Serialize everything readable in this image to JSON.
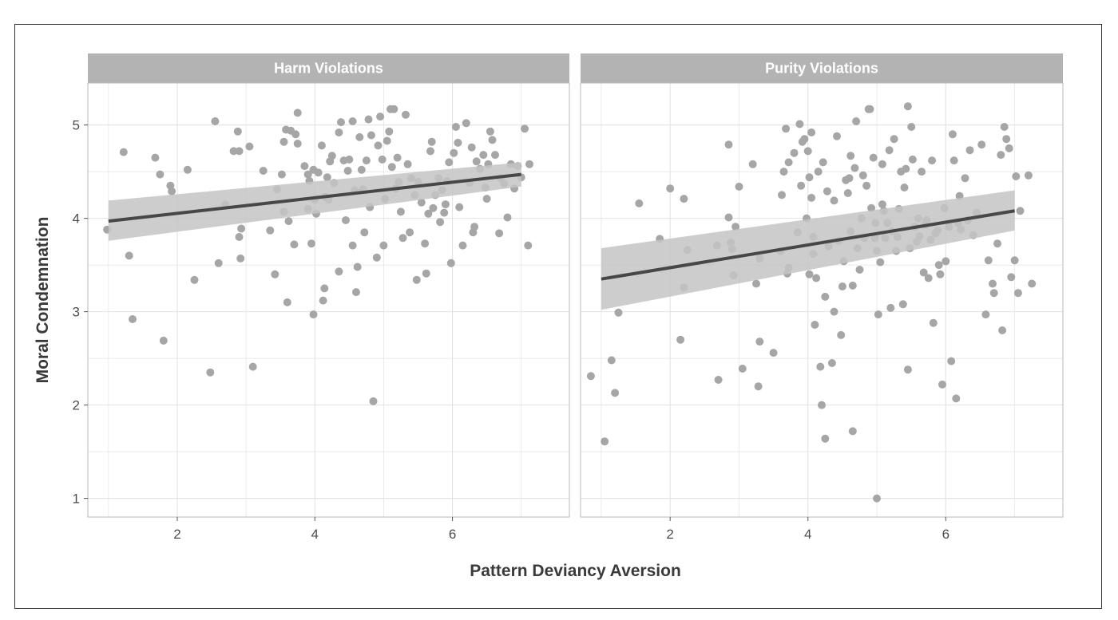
{
  "chart_data": {
    "type": "scatter",
    "xlabel": "Pattern Deviancy Aversion",
    "ylabel": "Moral Condemnation",
    "xlim": [
      0.7,
      7.7
    ],
    "ylim": [
      0.8,
      5.45
    ],
    "x_ticks": [
      2,
      4,
      6
    ],
    "y_ticks": [
      1,
      2,
      3,
      4,
      5
    ],
    "grid": true,
    "colors": {
      "points": "#a6a6a6",
      "line": "#474747",
      "ribbon": "#c4c4c4",
      "strip": "#b3b3b3",
      "grid": "#e3e3e3"
    },
    "panels": [
      {
        "title": "Harm Violations",
        "fit": {
          "x": [
            1.0,
            7.0
          ],
          "y": [
            3.97,
            4.47
          ],
          "ci_lower": [
            3.76,
            4.34
          ],
          "ci_upper": [
            4.19,
            4.6
          ]
        },
        "points": [
          [
            0.98,
            3.88
          ],
          [
            1.22,
            4.71
          ],
          [
            1.3,
            3.6
          ],
          [
            1.35,
            2.92
          ],
          [
            1.68,
            4.65
          ],
          [
            1.75,
            4.47
          ],
          [
            1.8,
            2.69
          ],
          [
            1.9,
            4.35
          ],
          [
            1.92,
            4.29
          ],
          [
            2.15,
            4.52
          ],
          [
            2.25,
            3.34
          ],
          [
            2.48,
            2.35
          ],
          [
            2.55,
            5.04
          ],
          [
            2.6,
            3.52
          ],
          [
            2.7,
            4.15
          ],
          [
            2.82,
            4.72
          ],
          [
            2.88,
            4.93
          ],
          [
            2.9,
            3.8
          ],
          [
            2.92,
            3.57
          ],
          [
            2.9,
            4.72
          ],
          [
            2.93,
            3.89
          ],
          [
            3.05,
            4.77
          ],
          [
            3.1,
            2.41
          ],
          [
            3.25,
            4.51
          ],
          [
            3.35,
            3.87
          ],
          [
            3.42,
            3.4
          ],
          [
            3.45,
            4.31
          ],
          [
            3.52,
            4.47
          ],
          [
            3.55,
            4.07
          ],
          [
            3.55,
            4.82
          ],
          [
            3.58,
            4.95
          ],
          [
            3.62,
            3.97
          ],
          [
            3.6,
            3.1
          ],
          [
            3.65,
            4.94
          ],
          [
            3.7,
            3.72
          ],
          [
            3.75,
            4.8
          ],
          [
            3.75,
            5.13
          ],
          [
            3.72,
            4.9
          ],
          [
            3.85,
            4.56
          ],
          [
            3.9,
            4.1
          ],
          [
            3.9,
            4.47
          ],
          [
            3.92,
            4.4
          ],
          [
            3.95,
            3.73
          ],
          [
            3.98,
            4.52
          ],
          [
            3.98,
            2.97
          ],
          [
            4.0,
            4.2
          ],
          [
            4.02,
            4.05
          ],
          [
            4.05,
            4.49
          ],
          [
            4.1,
            4.78
          ],
          [
            4.12,
            3.12
          ],
          [
            4.14,
            3.25
          ],
          [
            4.15,
            4.23
          ],
          [
            4.18,
            4.44
          ],
          [
            4.2,
            4.2
          ],
          [
            4.22,
            4.61
          ],
          [
            4.25,
            4.67
          ],
          [
            4.28,
            4.38
          ],
          [
            4.35,
            4.92
          ],
          [
            4.35,
            3.43
          ],
          [
            4.38,
            5.03
          ],
          [
            4.42,
            4.62
          ],
          [
            4.45,
            3.98
          ],
          [
            4.48,
            4.51
          ],
          [
            4.5,
            4.63
          ],
          [
            4.55,
            3.71
          ],
          [
            4.55,
            5.04
          ],
          [
            4.58,
            4.3
          ],
          [
            4.6,
            3.21
          ],
          [
            4.62,
            3.48
          ],
          [
            4.65,
            4.87
          ],
          [
            4.68,
            4.52
          ],
          [
            4.7,
            4.31
          ],
          [
            4.72,
            3.85
          ],
          [
            4.75,
            4.62
          ],
          [
            4.78,
            5.06
          ],
          [
            4.8,
            4.12
          ],
          [
            4.82,
            4.89
          ],
          [
            4.85,
            2.04
          ],
          [
            4.9,
            3.58
          ],
          [
            4.92,
            4.78
          ],
          [
            4.95,
            5.09
          ],
          [
            4.98,
            4.63
          ],
          [
            5.0,
            3.71
          ],
          [
            5.02,
            4.21
          ],
          [
            5.05,
            4.83
          ],
          [
            5.08,
            4.93
          ],
          [
            5.1,
            5.17
          ],
          [
            5.12,
            4.55
          ],
          [
            5.15,
            5.17
          ],
          [
            5.18,
            4.32
          ],
          [
            5.2,
            4.65
          ],
          [
            5.22,
            4.39
          ],
          [
            5.25,
            4.07
          ],
          [
            5.28,
            3.79
          ],
          [
            5.32,
            5.11
          ],
          [
            5.35,
            4.58
          ],
          [
            5.38,
            3.85
          ],
          [
            5.4,
            4.43
          ],
          [
            5.45,
            4.25
          ],
          [
            5.48,
            3.34
          ],
          [
            5.5,
            4.39
          ],
          [
            5.55,
            4.17
          ],
          [
            5.6,
            3.73
          ],
          [
            5.62,
            3.41
          ],
          [
            5.65,
            4.05
          ],
          [
            5.68,
            4.72
          ],
          [
            5.7,
            4.82
          ],
          [
            5.72,
            4.11
          ],
          [
            5.75,
            4.25
          ],
          [
            5.8,
            4.43
          ],
          [
            5.82,
            3.96
          ],
          [
            5.85,
            4.3
          ],
          [
            5.88,
            4.06
          ],
          [
            5.9,
            4.15
          ],
          [
            5.92,
            4.4
          ],
          [
            5.95,
            4.6
          ],
          [
            5.98,
            3.52
          ],
          [
            6.02,
            4.7
          ],
          [
            6.05,
            4.98
          ],
          [
            6.08,
            4.81
          ],
          [
            6.1,
            4.12
          ],
          [
            6.15,
            3.71
          ],
          [
            6.2,
            5.02
          ],
          [
            6.25,
            4.38
          ],
          [
            6.28,
            4.76
          ],
          [
            6.3,
            3.85
          ],
          [
            6.32,
            3.91
          ],
          [
            6.35,
            4.61
          ],
          [
            6.4,
            4.53
          ],
          [
            6.45,
            4.68
          ],
          [
            6.48,
            4.33
          ],
          [
            6.5,
            4.21
          ],
          [
            6.52,
            4.58
          ],
          [
            6.55,
            4.93
          ],
          [
            6.58,
            4.84
          ],
          [
            6.62,
            4.68
          ],
          [
            6.68,
            3.84
          ],
          [
            6.7,
            4.43
          ],
          [
            6.75,
            4.37
          ],
          [
            6.8,
            4.01
          ],
          [
            6.85,
            4.58
          ],
          [
            6.9,
            4.32
          ],
          [
            6.95,
            4.56
          ],
          [
            7.0,
            4.44
          ],
          [
            7.05,
            4.96
          ],
          [
            7.1,
            3.71
          ],
          [
            7.12,
            4.58
          ]
        ]
      },
      {
        "title": "Purity Violations",
        "fit": {
          "x": [
            1.0,
            7.0
          ],
          "y": [
            3.35,
            4.08
          ],
          "ci_lower": [
            3.02,
            3.87
          ],
          "ci_upper": [
            3.68,
            4.3
          ]
        },
        "points": [
          [
            0.85,
            2.31
          ],
          [
            1.05,
            1.61
          ],
          [
            1.15,
            2.48
          ],
          [
            1.2,
            2.13
          ],
          [
            1.25,
            2.99
          ],
          [
            1.55,
            4.16
          ],
          [
            1.85,
            3.78
          ],
          [
            2.0,
            4.32
          ],
          [
            2.15,
            2.7
          ],
          [
            2.2,
            3.26
          ],
          [
            2.2,
            4.21
          ],
          [
            2.25,
            3.66
          ],
          [
            2.68,
            3.71
          ],
          [
            2.7,
            2.27
          ],
          [
            2.85,
            4.01
          ],
          [
            2.85,
            4.79
          ],
          [
            2.88,
            3.74
          ],
          [
            2.9,
            3.67
          ],
          [
            2.92,
            3.39
          ],
          [
            2.95,
            3.91
          ],
          [
            3.0,
            4.34
          ],
          [
            3.05,
            2.39
          ],
          [
            3.2,
            4.58
          ],
          [
            3.25,
            3.3
          ],
          [
            3.28,
            2.2
          ],
          [
            3.3,
            2.68
          ],
          [
            3.3,
            3.57
          ],
          [
            3.5,
            2.56
          ],
          [
            3.6,
            3.65
          ],
          [
            3.62,
            4.25
          ],
          [
            3.65,
            4.5
          ],
          [
            3.68,
            4.96
          ],
          [
            3.7,
            3.41
          ],
          [
            3.72,
            3.47
          ],
          [
            3.72,
            4.6
          ],
          [
            3.8,
            4.7
          ],
          [
            3.85,
            3.85
          ],
          [
            3.88,
            5.01
          ],
          [
            3.9,
            4.35
          ],
          [
            3.92,
            4.82
          ],
          [
            3.95,
            4.85
          ],
          [
            3.98,
            4.0
          ],
          [
            4.0,
            4.72
          ],
          [
            4.02,
            4.44
          ],
          [
            4.02,
            3.4
          ],
          [
            4.05,
            4.92
          ],
          [
            4.05,
            4.22
          ],
          [
            4.08,
            3.8
          ],
          [
            4.08,
            3.62
          ],
          [
            4.1,
            2.86
          ],
          [
            4.12,
            3.36
          ],
          [
            4.15,
            4.5
          ],
          [
            4.18,
            2.41
          ],
          [
            4.2,
            2.0
          ],
          [
            4.22,
            4.6
          ],
          [
            4.25,
            3.16
          ],
          [
            4.25,
            1.64
          ],
          [
            4.28,
            4.29
          ],
          [
            4.3,
            3.7
          ],
          [
            4.35,
            2.45
          ],
          [
            4.38,
            3.0
          ],
          [
            4.38,
            4.19
          ],
          [
            4.42,
            4.88
          ],
          [
            4.45,
            3.76
          ],
          [
            4.48,
            2.75
          ],
          [
            4.5,
            3.27
          ],
          [
            4.52,
            3.54
          ],
          [
            4.55,
            4.41
          ],
          [
            4.58,
            4.27
          ],
          [
            4.6,
            4.43
          ],
          [
            4.62,
            4.67
          ],
          [
            4.62,
            3.86
          ],
          [
            4.65,
            1.72
          ],
          [
            4.65,
            3.28
          ],
          [
            4.68,
            4.54
          ],
          [
            4.7,
            5.04
          ],
          [
            4.72,
            3.68
          ],
          [
            4.75,
            3.45
          ],
          [
            4.78,
            4.0
          ],
          [
            4.8,
            4.46
          ],
          [
            4.82,
            3.79
          ],
          [
            4.85,
            4.35
          ],
          [
            4.88,
            5.17
          ],
          [
            4.9,
            5.17
          ],
          [
            4.92,
            4.11
          ],
          [
            4.95,
            4.65
          ],
          [
            4.97,
            3.79
          ],
          [
            4.98,
            3.95
          ],
          [
            5.0,
            3.65
          ],
          [
            5.0,
            1.0
          ],
          [
            5.02,
            2.97
          ],
          [
            5.05,
            3.53
          ],
          [
            5.08,
            4.15
          ],
          [
            5.08,
            4.58
          ],
          [
            5.1,
            4.08
          ],
          [
            5.12,
            3.79
          ],
          [
            5.15,
            3.95
          ],
          [
            5.18,
            4.73
          ],
          [
            5.2,
            3.04
          ],
          [
            5.22,
            3.86
          ],
          [
            5.25,
            4.85
          ],
          [
            5.28,
            3.65
          ],
          [
            5.3,
            3.8
          ],
          [
            5.32,
            4.1
          ],
          [
            5.35,
            4.5
          ],
          [
            5.38,
            3.08
          ],
          [
            5.4,
            4.33
          ],
          [
            5.42,
            4.53
          ],
          [
            5.45,
            5.2
          ],
          [
            5.45,
            2.38
          ],
          [
            5.48,
            3.68
          ],
          [
            5.5,
            4.98
          ],
          [
            5.52,
            4.63
          ],
          [
            5.55,
            3.91
          ],
          [
            5.58,
            3.75
          ],
          [
            5.6,
            4.0
          ],
          [
            5.62,
            3.81
          ],
          [
            5.65,
            4.5
          ],
          [
            5.68,
            3.42
          ],
          [
            5.7,
            3.93
          ],
          [
            5.72,
            3.98
          ],
          [
            5.75,
            3.36
          ],
          [
            5.78,
            3.77
          ],
          [
            5.8,
            4.62
          ],
          [
            5.82,
            2.88
          ],
          [
            5.85,
            3.84
          ],
          [
            5.88,
            3.87
          ],
          [
            5.9,
            3.5
          ],
          [
            5.92,
            3.4
          ],
          [
            5.95,
            2.22
          ],
          [
            5.98,
            4.11
          ],
          [
            6.0,
            3.54
          ],
          [
            6.05,
            3.91
          ],
          [
            6.08,
            2.47
          ],
          [
            6.1,
            4.9
          ],
          [
            6.12,
            4.62
          ],
          [
            6.15,
            2.07
          ],
          [
            6.18,
            3.95
          ],
          [
            6.2,
            4.24
          ],
          [
            6.22,
            3.88
          ],
          [
            6.28,
            4.43
          ],
          [
            6.32,
            3.98
          ],
          [
            6.35,
            4.73
          ],
          [
            6.4,
            3.82
          ],
          [
            6.45,
            4.06
          ],
          [
            6.52,
            4.79
          ],
          [
            6.58,
            2.97
          ],
          [
            6.62,
            3.55
          ],
          [
            6.68,
            3.3
          ],
          [
            6.7,
            3.2
          ],
          [
            6.75,
            3.73
          ],
          [
            6.8,
            4.68
          ],
          [
            6.82,
            2.8
          ],
          [
            6.85,
            4.98
          ],
          [
            6.88,
            4.85
          ],
          [
            6.92,
            4.75
          ],
          [
            6.95,
            3.37
          ],
          [
            7.0,
            3.55
          ],
          [
            7.02,
            4.45
          ],
          [
            7.05,
            3.2
          ],
          [
            7.08,
            4.08
          ],
          [
            7.2,
            4.46
          ],
          [
            7.25,
            3.3
          ]
        ]
      }
    ]
  }
}
